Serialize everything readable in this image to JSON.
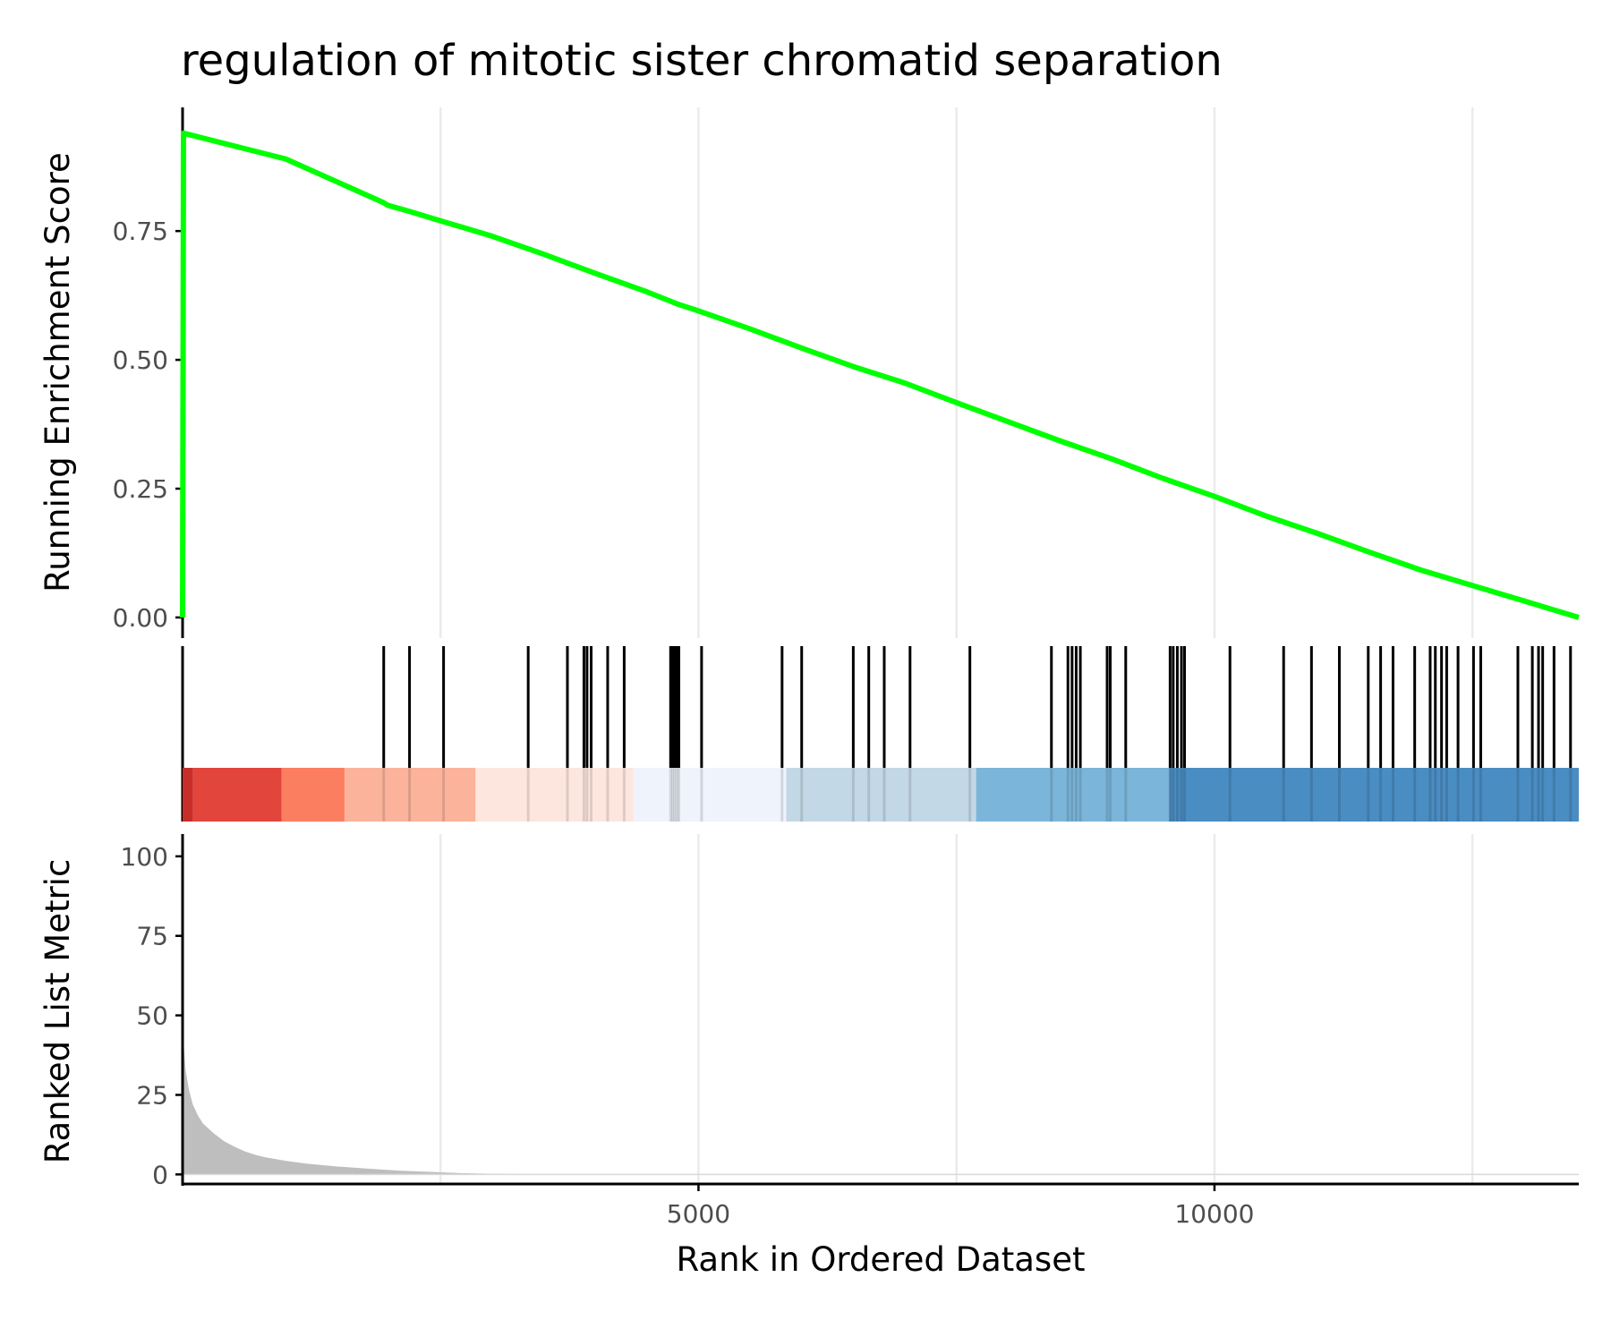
{
  "chart_data": {
    "type": "line",
    "title": "regulation of mitotic sister chromatid separation",
    "colors": {
      "es_line": "#00ff00",
      "gridline": "#ebebeb",
      "axis": "#000000",
      "metric_fill": "#bebebe",
      "hit_line": "#000000"
    },
    "x": {
      "label": "Rank in Ordered Dataset",
      "range": [
        1,
        13530
      ],
      "ticks": [
        5000,
        10000
      ],
      "gridlines": [
        2500,
        5000,
        7500,
        10000,
        12500
      ]
    },
    "running_es": {
      "ylabel": "Running Enrichment Score",
      "ylim": [
        -0.04,
        0.99
      ],
      "yticks": [
        0.0,
        0.25,
        0.5,
        0.75
      ],
      "ytick_labels": [
        "0.00",
        "0.25",
        "0.50",
        "0.75"
      ],
      "points": [
        [
          1,
          0.0
        ],
        [
          10,
          0.94
        ],
        [
          1000,
          0.89
        ],
        [
          1950,
          0.805
        ],
        [
          1990,
          0.8
        ],
        [
          2200,
          0.788
        ],
        [
          2500,
          0.77
        ],
        [
          3000,
          0.74
        ],
        [
          3500,
          0.705
        ],
        [
          4000,
          0.668
        ],
        [
          4500,
          0.632
        ],
        [
          4800,
          0.608
        ],
        [
          5000,
          0.595
        ],
        [
          5500,
          0.56
        ],
        [
          6000,
          0.523
        ],
        [
          6500,
          0.487
        ],
        [
          7000,
          0.455
        ],
        [
          7500,
          0.417
        ],
        [
          8000,
          0.38
        ],
        [
          8500,
          0.343
        ],
        [
          9000,
          0.308
        ],
        [
          9500,
          0.27
        ],
        [
          10000,
          0.235
        ],
        [
          10500,
          0.197
        ],
        [
          11000,
          0.163
        ],
        [
          11500,
          0.127
        ],
        [
          12000,
          0.092
        ],
        [
          12500,
          0.062
        ],
        [
          13000,
          0.032
        ],
        [
          13530,
          0.0
        ]
      ]
    },
    "gene_hits": [
      1950,
      2200,
      2530,
      3350,
      3730,
      3890,
      3920,
      3960,
      4120,
      4280,
      4730,
      4750,
      4770,
      4790,
      4810,
      5030,
      5810,
      6000,
      6500,
      6650,
      6800,
      7050,
      7630,
      8420,
      8580,
      8620,
      8660,
      8700,
      8960,
      8990,
      9140,
      9570,
      9600,
      9640,
      9680,
      9710,
      10150,
      10670,
      10940,
      11210,
      11490,
      11610,
      11730,
      11940,
      12090,
      12140,
      12200,
      12250,
      12360,
      12510,
      12580,
      12940,
      13080,
      13140,
      13180,
      13290,
      13450
    ],
    "rank_bins": [
      {
        "from": 1,
        "to": 100,
        "color": "#c92d2a"
      },
      {
        "from": 100,
        "to": 960,
        "color": "#e2453b"
      },
      {
        "from": 960,
        "to": 1570,
        "color": "#fb7e60"
      },
      {
        "from": 1570,
        "to": 2840,
        "color": "#fbb39b"
      },
      {
        "from": 2840,
        "to": 4370,
        "color": "#fde6de"
      },
      {
        "from": 4370,
        "to": 5850,
        "color": "#eff3fc"
      },
      {
        "from": 5850,
        "to": 7690,
        "color": "#c3d8e6"
      },
      {
        "from": 7690,
        "to": 9560,
        "color": "#7bb5d9"
      },
      {
        "from": 9560,
        "to": 13530,
        "color": "#4a8dc2"
      }
    ],
    "ranked_metric": {
      "ylabel": "Ranked List Metric",
      "ylim": [
        -3,
        107
      ],
      "yticks": [
        0,
        25,
        50,
        75,
        100
      ],
      "points": [
        [
          1,
          58
        ],
        [
          10,
          42
        ],
        [
          30,
          33
        ],
        [
          60,
          27
        ],
        [
          100,
          22
        ],
        [
          150,
          18.5
        ],
        [
          200,
          16
        ],
        [
          300,
          13
        ],
        [
          400,
          10.5
        ],
        [
          500,
          8.8
        ],
        [
          600,
          7.3
        ],
        [
          700,
          6.2
        ],
        [
          800,
          5.4
        ],
        [
          1000,
          4.3
        ],
        [
          1200,
          3.4
        ],
        [
          1500,
          2.5
        ],
        [
          1800,
          1.8
        ],
        [
          2100,
          1.2
        ],
        [
          2400,
          0.8
        ],
        [
          2700,
          0.4
        ],
        [
          3000,
          0.2
        ],
        [
          3500,
          0.05
        ],
        [
          4000,
          0.0
        ],
        [
          13530,
          0.0
        ]
      ]
    }
  }
}
